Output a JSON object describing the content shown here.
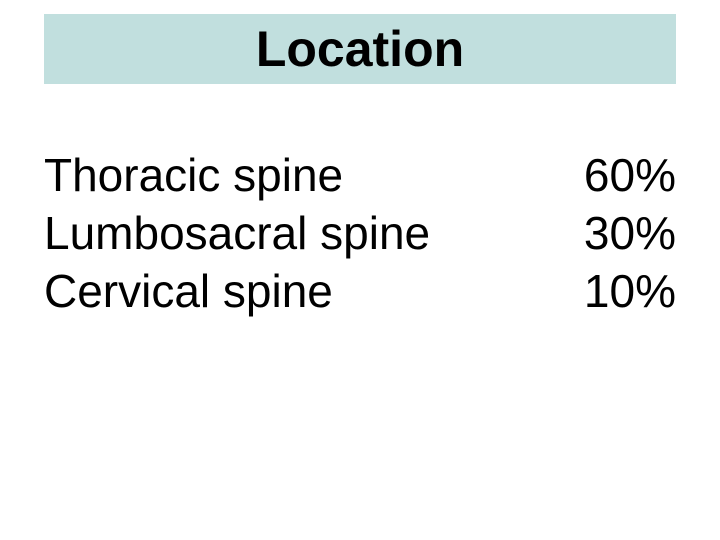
{
  "title": "Location",
  "rows": [
    {
      "label": "Thoracic spine",
      "value": "60%"
    },
    {
      "label": "Lumbosacral spine",
      "value": "30%"
    },
    {
      "label": "Cervical spine",
      "value": "10%"
    }
  ],
  "colors": {
    "title_bg": "#c1dfde",
    "text": "#000000",
    "page_bg": "#ffffff"
  },
  "fonts": {
    "title_size": 50,
    "body_size": 46,
    "title_weight": "bold",
    "body_weight": "normal"
  }
}
